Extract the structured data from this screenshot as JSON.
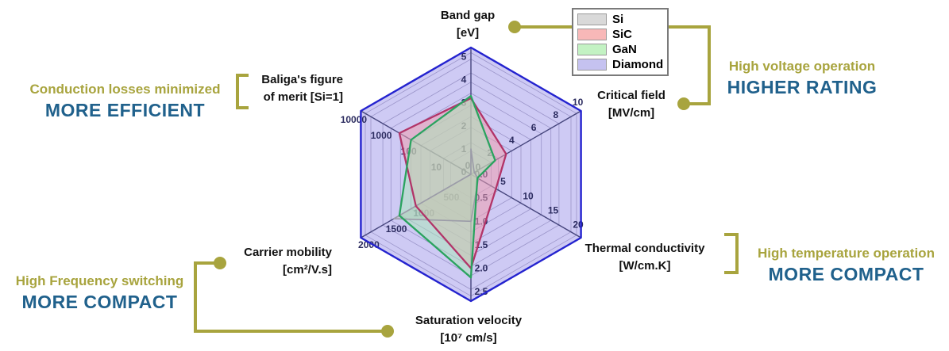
{
  "colors": {
    "olive_accent": "#a8a43e",
    "heading_blue": "#20618c",
    "tick_label": "#2c2c60",
    "grid_ring": "#9b95c9",
    "axis_spoke": "#45457c"
  },
  "legend": {
    "items": [
      {
        "label": "Si",
        "swatch": "#d9d9d9"
      },
      {
        "label": "SiC",
        "swatch": "#f8b8b8"
      },
      {
        "label": "GaN",
        "swatch": "#c3f2c3"
      },
      {
        "label": "Diamond",
        "swatch": "#c5c2f0"
      }
    ]
  },
  "chart_data": {
    "type": "radar",
    "axes": [
      {
        "id": "band-gap",
        "label": "Band gap",
        "unit": "[eV]",
        "max": 5.5,
        "scale": "linear",
        "tick_values": [
          0,
          1,
          2,
          3,
          4,
          5
        ],
        "tick_labels": [
          "0",
          "1",
          "2",
          "3",
          "4",
          "5"
        ]
      },
      {
        "id": "critical-field",
        "label": "Critical field",
        "unit": "[MV/cm]",
        "max": 10,
        "scale": "linear",
        "tick_values": [
          0,
          2,
          4,
          6,
          8,
          10
        ],
        "tick_labels": [
          "0",
          "2",
          "4",
          "6",
          "8",
          "10"
        ]
      },
      {
        "id": "thermal-conductivity",
        "label": "Thermal conductivity",
        "unit": "[W/cm.K]",
        "max": 22,
        "scale": "linear",
        "tick_values": [
          0,
          5,
          10,
          15,
          20
        ],
        "tick_labels": [
          "0",
          "5",
          "10",
          "15",
          "20"
        ]
      },
      {
        "id": "saturation-velocity",
        "label": "Saturation velocity",
        "unit": "[10⁷ cm/s]",
        "max": 2.7,
        "scale": "linear",
        "tick_values": [
          0,
          0.5,
          1.0,
          1.5,
          2.0,
          2.5
        ],
        "tick_labels": [
          "0.0",
          "0.5",
          "1.0",
          "1.5",
          "2.0",
          "2.5"
        ]
      },
      {
        "id": "carrier-mobility",
        "label": "Carrier mobility",
        "unit": "[cm²/V.s]",
        "max": 2000,
        "scale": "linear",
        "tick_values": [
          500,
          1000,
          1500,
          2000
        ],
        "tick_labels": [
          "500",
          "1000",
          "1500",
          "2000"
        ]
      },
      {
        "id": "baliga-fom",
        "label": "Baliga's figure",
        "unit": "of merit [Si=1]",
        "max": 10000,
        "scale": "log",
        "tick_values": [
          10,
          100,
          1000,
          10000
        ],
        "tick_labels": [
          "10",
          "100",
          "1000",
          "10000"
        ]
      }
    ],
    "series": [
      {
        "name": "Si",
        "values": [
          1.1,
          0.3,
          1.5,
          1.0,
          1400,
          1
        ],
        "fill": "#b9b9c2",
        "fill_opacity": 0.55,
        "stroke": "#9b9ba8",
        "stroke_width": 1.6
      },
      {
        "name": "SiC",
        "values": [
          3.3,
          3.2,
          5.0,
          2.0,
          1000,
          400
        ],
        "fill": "#ef9fae",
        "fill_opacity": 0.55,
        "stroke": "#b23468",
        "stroke_width": 2.3
      },
      {
        "name": "GaN",
        "values": [
          3.4,
          2.2,
          1.3,
          2.2,
          1300,
          150
        ],
        "fill": "#a9e8b6",
        "fill_opacity": 0.5,
        "stroke": "#2aa35f",
        "stroke_width": 2.3
      },
      {
        "name": "Diamond",
        "values": [
          5.5,
          10,
          22,
          2.7,
          2000,
          10000
        ],
        "fill": "#cbc7f3",
        "fill_opacity": 0.95,
        "stroke": "#2423cf",
        "stroke_width": 2.4
      }
    ],
    "legend_position": "top-right",
    "grid": true
  },
  "annotations": {
    "top_right": {
      "line1": "High voltage operation",
      "line2": "HIGHER RATING"
    },
    "left": {
      "line1": "Conduction losses minimized",
      "line2": "MORE EFFICIENT"
    },
    "right": {
      "line1": "High temperature operation",
      "line2": "MORE COMPACT"
    },
    "bottom_left": {
      "line1": "High Frequency switching",
      "line2": "MORE COMPACT"
    }
  }
}
